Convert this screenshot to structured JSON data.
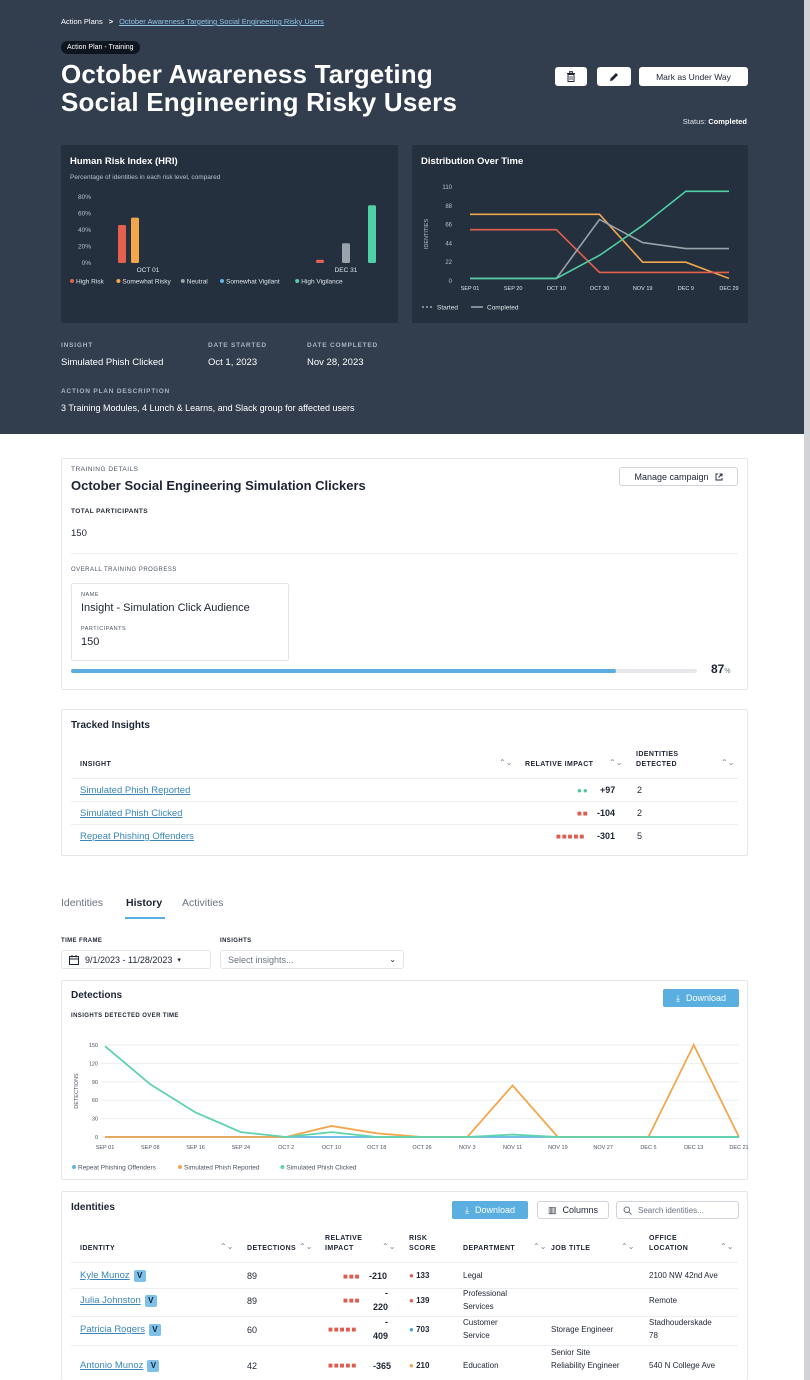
{
  "breadcrumb": {
    "root": "Action Plans",
    "separator": ">",
    "current": "October Awareness Targeting Social Engineering Risky Users"
  },
  "pill": "Action Plan - Training",
  "title_line1": "October Awareness Targeting",
  "title_line2": "Social Engineering Risky Users",
  "buttons": {
    "delete_icon": "trash-icon",
    "edit_icon": "pencil-icon",
    "mark": "Mark as Under Way"
  },
  "status": {
    "label": "Status:",
    "value": "Completed"
  },
  "hri": {
    "title": "Human Risk Index (HRI)",
    "subtitle": "Percentage of identities in each risk level, compared"
  },
  "dist": {
    "title": "Distribution Over Time"
  },
  "meta": {
    "insight_label": "INSIGHT",
    "insight": "Simulated Phish Clicked",
    "start_label": "DATE STARTED",
    "start": "Oct 1, 2023",
    "end_label": "DATE COMPLETED",
    "end": "Nov 28, 2023",
    "desc_label": "ACTION PLAN DESCRIPTION",
    "desc": "3 Training Modules, 4 Lunch & Learns, and Slack group for affected users"
  },
  "training": {
    "label": "TRAINING DETAILS",
    "title": "October Social Engineering Simulation Clickers",
    "manage": "Manage campaign",
    "participants_label": "TOTAL PARTICIPANTS",
    "participants": "150",
    "progress_label": "OVERALL TRAINING PROGRESS",
    "name_label": "NAME",
    "name": "Insight - Simulation Click Audience",
    "p_label": "PARTICIPANTS",
    "p_value": "150",
    "progress": 87,
    "progress_text": "87",
    "progress_unit": "%"
  },
  "tracked": {
    "title": "Tracked Insights",
    "headers": {
      "insight": "INSIGHT",
      "impact": "RELATIVE IMPACT",
      "identities_1": "IDENTITIES",
      "identities_2": "DETECTED"
    },
    "rows": [
      {
        "name": "Simulated Phish Reported",
        "dots": "●●",
        "impact": "+97",
        "count": "2"
      },
      {
        "name": "Simulated Phish Clicked",
        "dots": "■■",
        "impact": "-104",
        "count": "2"
      },
      {
        "name": "Repeat Phishing Offenders",
        "dots": "■■■■■",
        "impact": "-301",
        "count": "5"
      }
    ]
  },
  "tabs": [
    "Identities",
    "History",
    "Activities"
  ],
  "filters": {
    "time_label": "TIME FRAME",
    "time_value": "9/1/2023 - 11/28/2023",
    "insights_label": "INSIGHTS",
    "insights_placeholder": "Select insights..."
  },
  "detections": {
    "title": "Detections",
    "subtitle": "INSIGHTS DETECTED OVER TIME",
    "download": "Download"
  },
  "identities": {
    "title": "Identities",
    "download": "Download",
    "columns": "Columns",
    "search_placeholder": "Search identities...",
    "headers": {
      "identity": "IDENTITY",
      "detections": "DETECTIONS",
      "impact_1": "RELATIVE",
      "impact_2": "IMPACT",
      "risk_1": "RISK",
      "risk_2": "SCORE",
      "department": "DEPARTMENT",
      "job": "JOB TITLE",
      "office_1": "OFFICE",
      "office_2": "LOCATION"
    },
    "badge": "V",
    "rows": [
      {
        "name": "Kyle Munoz",
        "detections": "89",
        "dots": "■■■",
        "impact": "-210",
        "risk": "133",
        "dept": "Legal",
        "job": "",
        "office": "2100 NW 42nd Ave"
      },
      {
        "name": "Julia Johnston",
        "detections": "89",
        "dots": "■■■",
        "impact_a": "-",
        "impact_b": "220",
        "risk": "139",
        "dept_a": "Professional",
        "dept_b": "Services",
        "job": "",
        "office": "Remote"
      },
      {
        "name": "Patricia Rogers",
        "detections": "60",
        "dots": "■■■■■",
        "impact_a": "-",
        "impact_b": "409",
        "risk": "703",
        "dept_a": "Customer",
        "dept_b": "Service",
        "job": "Storage Engineer",
        "office_a": "Stadhouderskade",
        "office_b": "78"
      },
      {
        "name": "Antonio Munoz",
        "detections": "42",
        "dots": "■■■■■",
        "impact": "-365",
        "risk": "210",
        "dept": "Education",
        "job_a": "Senior Site",
        "job_b": "Reliability Engineer",
        "office": "540 N College Ave"
      }
    ]
  },
  "chart_data": [
    {
      "type": "bar",
      "title": "Human Risk Index (HRI)",
      "subtitle": "Percentage of identities in each risk level, compared",
      "categories": [
        "OCT 01",
        "DEC 31"
      ],
      "yticks": [
        "80%",
        "60%",
        "40%",
        "20%",
        "0%"
      ],
      "ylim": [
        0,
        80
      ],
      "series": [
        {
          "name": "High Risk",
          "color": "#e4604e",
          "values": [
            46,
            4
          ]
        },
        {
          "name": "Somewhat Risky",
          "color": "#f4a64d",
          "values": [
            55,
            0
          ]
        },
        {
          "name": "Neutral",
          "color": "#9aa2ab",
          "values": [
            0,
            24
          ]
        },
        {
          "name": "Somewhat Vigilant",
          "color": "#5fb4e6",
          "values": [
            0,
            0
          ]
        },
        {
          "name": "High Vigilance",
          "color": "#4fd1a5",
          "values": [
            0,
            70
          ]
        }
      ],
      "legend": "bottom"
    },
    {
      "type": "line",
      "title": "Distribution Over Time",
      "categories": [
        "SEP 01",
        "SEP 20",
        "OCT 10",
        "OCT 30",
        "NOV 19",
        "DEC 9",
        "DEC 29"
      ],
      "yticks": [
        "110",
        "88",
        "66",
        "44",
        "22",
        "0"
      ],
      "ylim": [
        0,
        110
      ],
      "ylabel": "IDENTITIES",
      "legend_items": [
        "Started",
        "Completed"
      ],
      "series": [
        {
          "color": "#f4a64d",
          "values": [
            78,
            78,
            78,
            78,
            22,
            22,
            3
          ]
        },
        {
          "color": "#e4604e",
          "values": [
            60,
            60,
            60,
            10,
            10,
            10,
            10
          ]
        },
        {
          "color": "#9aa2ab",
          "values": [
            3,
            3,
            3,
            72,
            45,
            38,
            38
          ]
        },
        {
          "color": "#4fd1a5",
          "values": [
            3,
            3,
            3,
            30,
            65,
            105,
            105
          ]
        }
      ]
    },
    {
      "type": "line",
      "title": "Detections",
      "subtitle": "INSIGHTS DETECTED OVER TIME",
      "categories": [
        "SEP 01",
        "SEP 08",
        "SEP 16",
        "SEP 24",
        "OCT 2",
        "OCT 10",
        "OCT 18",
        "OCT 26",
        "NOV 3",
        "NOV 11",
        "NOV 19",
        "NOV 27",
        "DEC 5",
        "DEC 13",
        "DEC 21"
      ],
      "yticks": [
        "150",
        "120",
        "90",
        "60",
        "30",
        "0"
      ],
      "ylim": [
        0,
        150
      ],
      "ylabel": "DETECTIONS",
      "series": [
        {
          "name": "Repeat Phishing Offenders",
          "color": "#5fb4e6",
          "values": [
            0,
            0,
            0,
            0,
            0,
            0,
            0,
            0,
            0,
            0,
            0,
            0,
            0,
            0,
            0
          ]
        },
        {
          "name": "Simulated Phish Reported",
          "color": "#f4a64d",
          "values": [
            0,
            0,
            0,
            0,
            0,
            18,
            6,
            0,
            0,
            84,
            0,
            0,
            0,
            150,
            0
          ]
        },
        {
          "name": "Simulated Phish Clicked",
          "color": "#5fd3aa",
          "values": [
            148,
            86,
            40,
            8,
            0,
            8,
            0,
            0,
            0,
            4,
            0,
            0,
            0,
            0,
            0
          ]
        }
      ]
    }
  ]
}
